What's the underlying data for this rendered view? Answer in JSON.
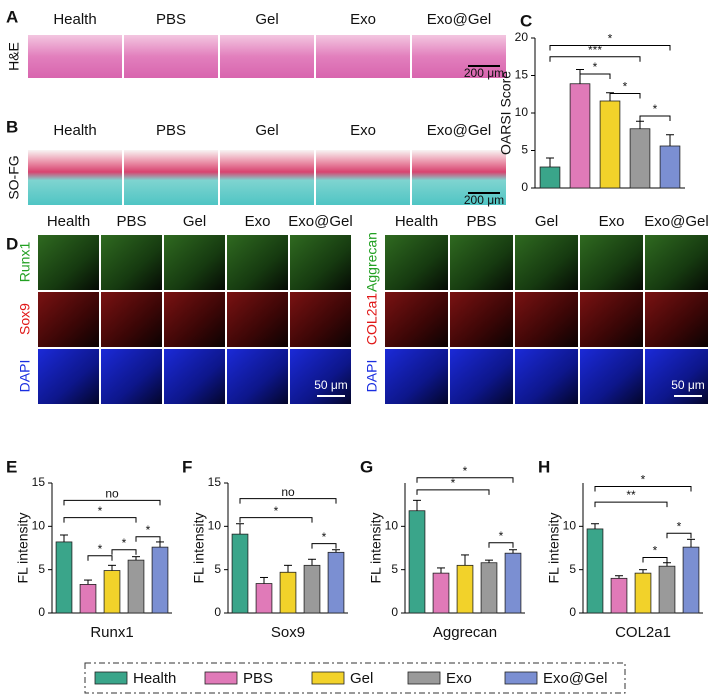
{
  "panel_labels": [
    "A",
    "B",
    "C",
    "D",
    "E",
    "F",
    "G",
    "H"
  ],
  "he": {
    "row_label": "H&E",
    "columns": [
      "Health",
      "PBS",
      "Gel",
      "Exo",
      "Exo@Gel"
    ],
    "scale_bar": "200 μm"
  },
  "sofg": {
    "row_label": "SO-FG",
    "columns": [
      "Health",
      "PBS",
      "Gel",
      "Exo",
      "Exo@Gel"
    ],
    "scale_bar": "200 μm"
  },
  "fluorescence": [
    {
      "columns": [
        "Health",
        "PBS",
        "Gel",
        "Exo",
        "Exo@Gel"
      ],
      "rows": [
        "Runx1",
        "Sox9",
        "DAPI"
      ],
      "scale_bar": "50 μm"
    },
    {
      "columns": [
        "Health",
        "PBS",
        "Gel",
        "Exo",
        "Exo@Gel"
      ],
      "rows": [
        "Aggrecan",
        "COL2a1",
        "DAPI"
      ],
      "scale_bar": "50 μm"
    }
  ],
  "legend": {
    "names": [
      "Health",
      "PBS",
      "Gel",
      "Exo",
      "Exo@Gel"
    ],
    "colors": [
      "#3aa58a",
      "#e07ab8",
      "#f2d22a",
      "#9a9a9a",
      "#7b8fd2"
    ]
  },
  "chart_data": [
    {
      "type": "bar",
      "ylabel": "OARSI Score",
      "categories": [
        null,
        null,
        null,
        null,
        null
      ],
      "values": [
        2.8,
        13.9,
        11.6,
        7.9,
        5.6
      ],
      "errors": [
        1.2,
        1.9,
        1.1,
        1.0,
        1.5
      ],
      "ylim": [
        0,
        20
      ],
      "yticks": [
        0,
        5,
        10,
        15,
        20
      ],
      "annotations": [
        "*",
        "***",
        "*",
        "*",
        "*"
      ]
    },
    {
      "type": "bar",
      "ylabel": "FL intensity",
      "xlabel": "Runx1",
      "categories": [
        null,
        null,
        null,
        null,
        null
      ],
      "values": [
        8.2,
        3.3,
        4.9,
        6.1,
        7.6
      ],
      "errors": [
        0.8,
        0.5,
        0.6,
        0.4,
        0.6
      ],
      "ylim": [
        0,
        15
      ],
      "yticks": [
        0,
        5,
        10,
        15
      ],
      "annotations": [
        "no",
        "*",
        "*",
        "*",
        "*"
      ]
    },
    {
      "type": "bar",
      "ylabel": "FL intensity",
      "xlabel": "Sox9",
      "categories": [
        null,
        null,
        null,
        null,
        null
      ],
      "values": [
        9.1,
        3.4,
        4.7,
        5.5,
        7.0
      ],
      "errors": [
        1.2,
        0.7,
        0.8,
        0.7,
        0.3
      ],
      "ylim": [
        0,
        15
      ],
      "yticks": [
        0,
        5,
        10,
        15
      ],
      "annotations": [
        "no",
        "*",
        "*"
      ]
    },
    {
      "type": "bar",
      "ylabel": "FL intensity",
      "xlabel": "Aggrecan",
      "categories": [
        null,
        null,
        null,
        null,
        null
      ],
      "values": [
        11.8,
        4.6,
        5.5,
        5.8,
        6.9
      ],
      "errors": [
        1.2,
        0.6,
        1.2,
        0.3,
        0.4
      ],
      "ylim": [
        0,
        15
      ],
      "yticks": [
        0,
        5,
        10
      ],
      "annotations": [
        "*",
        "*",
        "*"
      ]
    },
    {
      "type": "bar",
      "ylabel": "FL intensity",
      "xlabel": "COL2a1",
      "categories": [
        null,
        null,
        null,
        null,
        null
      ],
      "values": [
        9.7,
        4.0,
        4.6,
        5.4,
        7.6
      ],
      "errors": [
        0.6,
        0.3,
        0.4,
        0.4,
        0.9
      ],
      "ylim": [
        0,
        15
      ],
      "yticks": [
        0,
        5,
        10
      ],
      "annotations": [
        "*",
        "**",
        "*",
        "*"
      ]
    }
  ]
}
